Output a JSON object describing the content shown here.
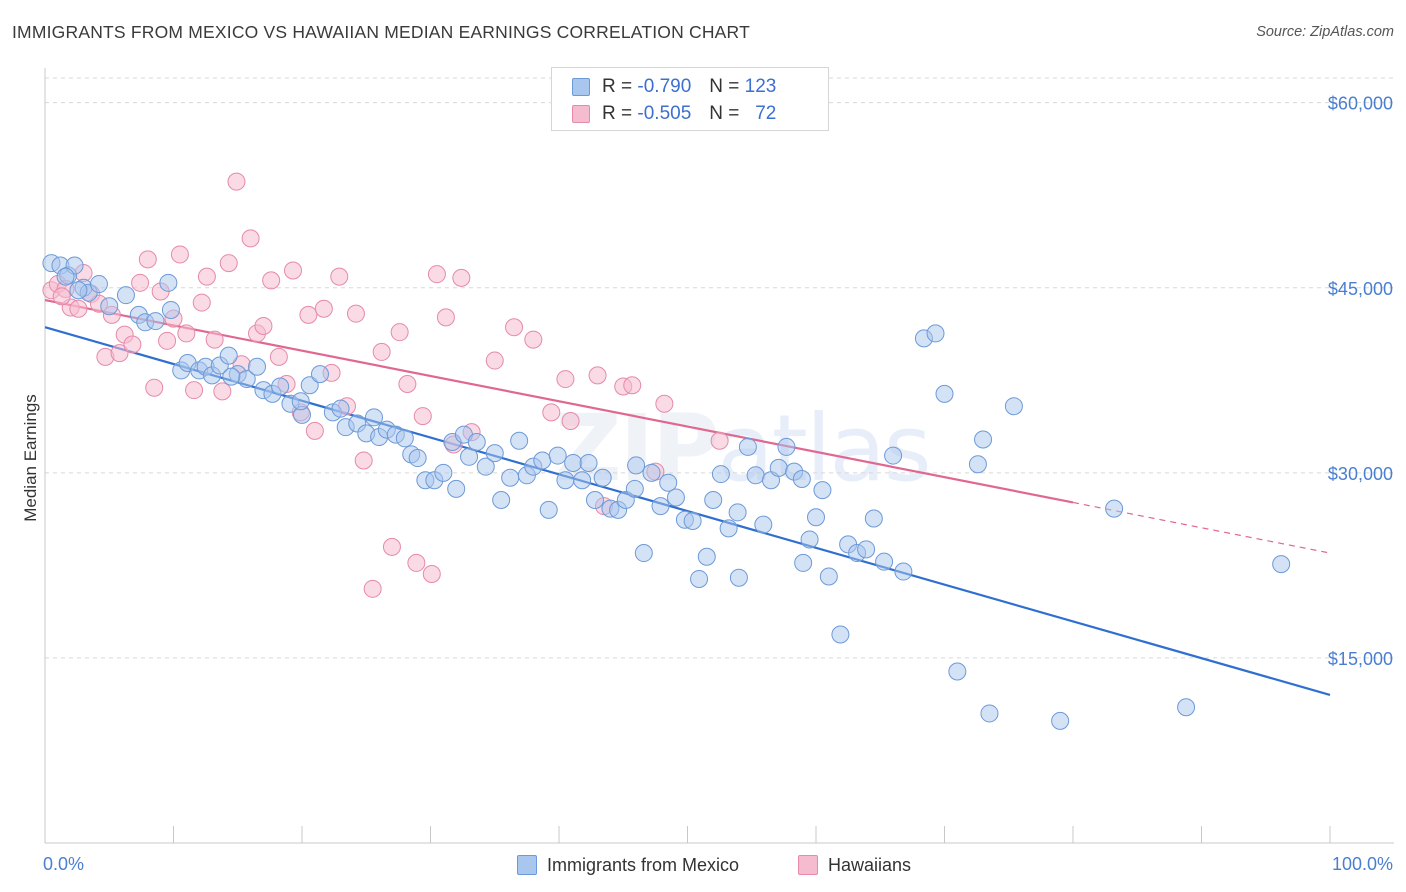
{
  "title": "IMMIGRANTS FROM MEXICO VS HAWAIIAN MEDIAN EARNINGS CORRELATION CHART",
  "source": "Source: ZipAtlas.com",
  "watermark": {
    "zip": "ZIP",
    "atlas": "atlas"
  },
  "legend": {
    "rows": [
      {
        "r_label": "R =",
        "r_value": "-0.790",
        "n_label": "N =",
        "n_value": "123"
      },
      {
        "r_label": "R =",
        "r_value": "-0.505",
        "n_label": "N =",
        "n_value": "72"
      }
    ]
  },
  "bottom_legend": {
    "series1": "Immigrants from Mexico",
    "series2": "Hawaiians"
  },
  "colors": {
    "blue_fill": "#a9c6ee",
    "blue_stroke": "#6c9ad8",
    "blue_line": "#2f6fd0",
    "pink_fill": "#f5bcd0",
    "pink_stroke": "#e68aaa",
    "pink_line": "#e06890",
    "grid": "#d8d8d8",
    "axis_text": "#4a7fd0"
  },
  "chart_data": {
    "type": "scatter",
    "title": "IMMIGRANTS FROM MEXICO VS HAWAIIAN MEDIAN EARNINGS CORRELATION CHART",
    "xlabel": "",
    "ylabel": "Median Earnings",
    "xlim": [
      0,
      100
    ],
    "ylim": [
      0,
      63000
    ],
    "x_tick_labels": [
      "0.0%",
      "100.0%"
    ],
    "y_ticks": [
      15000,
      30000,
      45000,
      60000
    ],
    "y_tick_labels": [
      "$15,000",
      "$30,000",
      "$45,000",
      "$60,000"
    ],
    "series": [
      {
        "name": "Immigrants from Mexico",
        "r": -0.79,
        "n": 123,
        "trend": {
          "x": [
            0,
            100
          ],
          "y": [
            41800,
            12000
          ]
        },
        "points": [
          [
            0.5,
            47000
          ],
          [
            1.2,
            46800
          ],
          [
            1.8,
            46000
          ],
          [
            2.3,
            46800
          ],
          [
            3.0,
            45000
          ],
          [
            3.4,
            44600
          ],
          [
            4.2,
            45300
          ],
          [
            5.0,
            43500
          ],
          [
            6.3,
            44400
          ],
          [
            7.3,
            42800
          ],
          [
            7.8,
            42200
          ],
          [
            8.6,
            42300
          ],
          [
            9.6,
            45400
          ],
          [
            9.8,
            43200
          ],
          [
            10.6,
            38300
          ],
          [
            11.1,
            38900
          ],
          [
            12.0,
            38300
          ],
          [
            12.5,
            38600
          ],
          [
            13.0,
            37900
          ],
          [
            13.6,
            38700
          ],
          [
            14.3,
            39500
          ],
          [
            15.0,
            38000
          ],
          [
            15.7,
            37600
          ],
          [
            16.5,
            38600
          ],
          [
            17.0,
            36700
          ],
          [
            17.7,
            36400
          ],
          [
            18.3,
            37000
          ],
          [
            19.1,
            35600
          ],
          [
            20.0,
            34700
          ],
          [
            20.6,
            37100
          ],
          [
            21.4,
            38000
          ],
          [
            22.4,
            34900
          ],
          [
            23.0,
            35200
          ],
          [
            23.4,
            33700
          ],
          [
            24.3,
            34000
          ],
          [
            25.0,
            33200
          ],
          [
            25.6,
            34500
          ],
          [
            26.0,
            32900
          ],
          [
            26.6,
            33500
          ],
          [
            27.3,
            33100
          ],
          [
            28.0,
            32800
          ],
          [
            28.5,
            31500
          ],
          [
            29.0,
            31200
          ],
          [
            29.6,
            29400
          ],
          [
            30.3,
            29400
          ],
          [
            31.0,
            30000
          ],
          [
            31.7,
            32500
          ],
          [
            32.6,
            33100
          ],
          [
            33.0,
            31300
          ],
          [
            33.6,
            32500
          ],
          [
            34.3,
            30500
          ],
          [
            35.0,
            31600
          ],
          [
            35.5,
            27800
          ],
          [
            36.2,
            29600
          ],
          [
            36.9,
            32600
          ],
          [
            37.5,
            29800
          ],
          [
            38.0,
            30500
          ],
          [
            38.7,
            31000
          ],
          [
            39.2,
            27000
          ],
          [
            39.9,
            31400
          ],
          [
            40.5,
            29400
          ],
          [
            41.1,
            30800
          ],
          [
            41.8,
            29400
          ],
          [
            42.3,
            30800
          ],
          [
            42.8,
            27800
          ],
          [
            43.4,
            29600
          ],
          [
            44.0,
            27100
          ],
          [
            44.6,
            27000
          ],
          [
            45.2,
            27800
          ],
          [
            45.9,
            28700
          ],
          [
            46.6,
            23500
          ],
          [
            47.2,
            30000
          ],
          [
            47.9,
            27300
          ],
          [
            48.5,
            29200
          ],
          [
            49.1,
            28000
          ],
          [
            49.8,
            26200
          ],
          [
            50.4,
            26100
          ],
          [
            50.9,
            21400
          ],
          [
            51.5,
            23200
          ],
          [
            52.0,
            27800
          ],
          [
            52.6,
            29900
          ],
          [
            53.2,
            25500
          ],
          [
            54.0,
            21500
          ],
          [
            54.7,
            32100
          ],
          [
            55.3,
            29800
          ],
          [
            55.9,
            25800
          ],
          [
            56.5,
            29400
          ],
          [
            57.1,
            30400
          ],
          [
            57.7,
            32100
          ],
          [
            58.3,
            30100
          ],
          [
            59.0,
            22700
          ],
          [
            59.5,
            24600
          ],
          [
            60.0,
            26400
          ],
          [
            60.5,
            28600
          ],
          [
            61.0,
            21600
          ],
          [
            61.9,
            16900
          ],
          [
            62.5,
            24200
          ],
          [
            63.2,
            23500
          ],
          [
            63.9,
            23800
          ],
          [
            64.5,
            26300
          ],
          [
            65.3,
            22800
          ],
          [
            66.0,
            31400
          ],
          [
            66.8,
            22000
          ],
          [
            68.4,
            40900
          ],
          [
            69.3,
            41300
          ],
          [
            70.0,
            36400
          ],
          [
            71.0,
            13900
          ],
          [
            72.6,
            30700
          ],
          [
            73.0,
            32700
          ],
          [
            73.5,
            10500
          ],
          [
            75.4,
            35400
          ],
          [
            79.0,
            9900
          ],
          [
            83.2,
            27100
          ],
          [
            88.8,
            11000
          ],
          [
            96.2,
            22600
          ],
          [
            1.6,
            45900
          ],
          [
            2.6,
            44800
          ],
          [
            14.5,
            37800
          ],
          [
            19.9,
            35800
          ],
          [
            32.0,
            28700
          ],
          [
            46.0,
            30600
          ],
          [
            53.9,
            26800
          ],
          [
            58.9,
            29500
          ]
        ]
      },
      {
        "name": "Hawaiians",
        "r": -0.505,
        "n": 72,
        "trend": {
          "x": [
            0,
            80
          ],
          "y": [
            44000,
            27600
          ]
        },
        "trend_dashed": {
          "x": [
            80,
            100
          ],
          "y": [
            27600,
            23500
          ]
        },
        "points": [
          [
            0.5,
            44800
          ],
          [
            1.0,
            45300
          ],
          [
            1.6,
            44900
          ],
          [
            2.0,
            43400
          ],
          [
            2.6,
            43300
          ],
          [
            3.0,
            46200
          ],
          [
            3.6,
            44500
          ],
          [
            4.2,
            43700
          ],
          [
            4.7,
            39400
          ],
          [
            5.2,
            42800
          ],
          [
            5.8,
            39700
          ],
          [
            6.2,
            41200
          ],
          [
            6.8,
            40400
          ],
          [
            7.4,
            45400
          ],
          [
            8.0,
            47300
          ],
          [
            8.5,
            36900
          ],
          [
            9.0,
            44700
          ],
          [
            9.5,
            40700
          ],
          [
            10.0,
            42500
          ],
          [
            10.5,
            47700
          ],
          [
            11.0,
            41300
          ],
          [
            11.6,
            36700
          ],
          [
            12.2,
            43800
          ],
          [
            12.6,
            45900
          ],
          [
            13.2,
            40800
          ],
          [
            13.8,
            36600
          ],
          [
            14.3,
            47000
          ],
          [
            14.9,
            53600
          ],
          [
            15.3,
            38800
          ],
          [
            16.0,
            49000
          ],
          [
            16.5,
            41300
          ],
          [
            17.0,
            41900
          ],
          [
            17.6,
            45600
          ],
          [
            18.2,
            39400
          ],
          [
            18.8,
            37200
          ],
          [
            19.3,
            46400
          ],
          [
            19.9,
            34900
          ],
          [
            20.5,
            42800
          ],
          [
            21.0,
            33400
          ],
          [
            21.7,
            43300
          ],
          [
            22.3,
            38100
          ],
          [
            22.9,
            45900
          ],
          [
            23.5,
            35400
          ],
          [
            24.2,
            42900
          ],
          [
            24.8,
            31000
          ],
          [
            25.5,
            20600
          ],
          [
            26.2,
            39800
          ],
          [
            27.0,
            24000
          ],
          [
            27.6,
            41400
          ],
          [
            28.2,
            37200
          ],
          [
            28.9,
            22700
          ],
          [
            29.4,
            34600
          ],
          [
            30.1,
            21800
          ],
          [
            30.5,
            46100
          ],
          [
            31.2,
            42600
          ],
          [
            31.8,
            32300
          ],
          [
            32.4,
            45800
          ],
          [
            33.2,
            33300
          ],
          [
            35.0,
            39100
          ],
          [
            36.5,
            41800
          ],
          [
            38.0,
            40800
          ],
          [
            39.4,
            34900
          ],
          [
            40.5,
            37600
          ],
          [
            40.9,
            34200
          ],
          [
            43.0,
            37900
          ],
          [
            43.5,
            27300
          ],
          [
            45.0,
            37000
          ],
          [
            45.7,
            37100
          ],
          [
            47.5,
            30100
          ],
          [
            48.2,
            35600
          ],
          [
            52.5,
            32600
          ],
          [
            1.3,
            44300
          ]
        ]
      }
    ]
  }
}
